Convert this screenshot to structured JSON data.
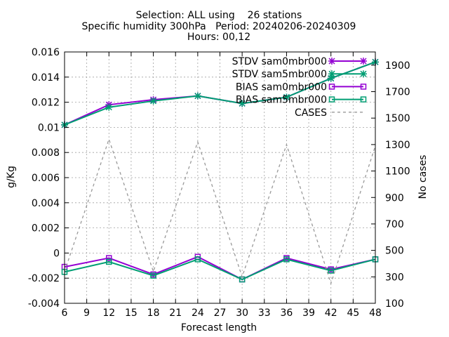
{
  "title": {
    "line1": "Selection: ALL using    26 stations",
    "line2": "Specific humidity 300hPa   Period: 20240206-20240309",
    "line3": "Hours: 00,12"
  },
  "chart_data": {
    "type": "line",
    "xlabel": "Forecast length",
    "ylabel": "g/Kg",
    "y2label": "No cases",
    "x": [
      6,
      12,
      18,
      24,
      30,
      36,
      42,
      48
    ],
    "xlim": [
      6,
      48
    ],
    "ylim": [
      -0.004,
      0.016
    ],
    "y2lim": [
      100,
      2000
    ],
    "xticks": [
      "6",
      "9",
      "12",
      "15",
      "18",
      "21",
      "24",
      "27",
      "30",
      "33",
      "36",
      "39",
      "42",
      "45",
      "48"
    ],
    "yticks": [
      "-0.004",
      "-0.002",
      "0",
      "0.002",
      "0.004",
      "0.006",
      "0.008",
      "0.01",
      "0.012",
      "0.014",
      "0.016"
    ],
    "y2ticks": [
      "100",
      "300",
      "500",
      "700",
      "900",
      "1100",
      "1300",
      "1500",
      "1700",
      "1900"
    ],
    "grid": true,
    "legend_position": "top-right",
    "series": [
      {
        "name": "STDV sam0mbr000",
        "axis": "y",
        "color": "#9400d3",
        "marker": "star",
        "values": [
          0.0102,
          0.0118,
          0.0122,
          0.0125,
          0.0119,
          0.0124,
          0.0139,
          0.0152
        ]
      },
      {
        "name": "STDV sam5mbr000",
        "axis": "y",
        "color": "#009e73",
        "marker": "star",
        "values": [
          0.0102,
          0.0116,
          0.0121,
          0.0125,
          0.0119,
          0.0124,
          0.0139,
          0.0152
        ]
      },
      {
        "name": "BIAS sam0mbr000",
        "axis": "y",
        "color": "#9400d3",
        "marker": "square",
        "values": [
          -0.0011,
          -0.0004,
          -0.0017,
          -0.0003,
          -0.0021,
          -0.0004,
          -0.0013,
          -0.0005
        ]
      },
      {
        "name": "BIAS sam5mbr000",
        "axis": "y",
        "color": "#009e73",
        "marker": "square",
        "values": [
          -0.0015,
          -0.0007,
          -0.0018,
          -0.0005,
          -0.0021,
          -0.0005,
          -0.0014,
          -0.0005
        ]
      },
      {
        "name": "CASES",
        "axis": "y2",
        "color": "#999999",
        "marker": "none",
        "dashed": true,
        "values": [
          340,
          1340,
          340,
          1320,
          300,
          1300,
          250,
          1290
        ]
      }
    ]
  }
}
